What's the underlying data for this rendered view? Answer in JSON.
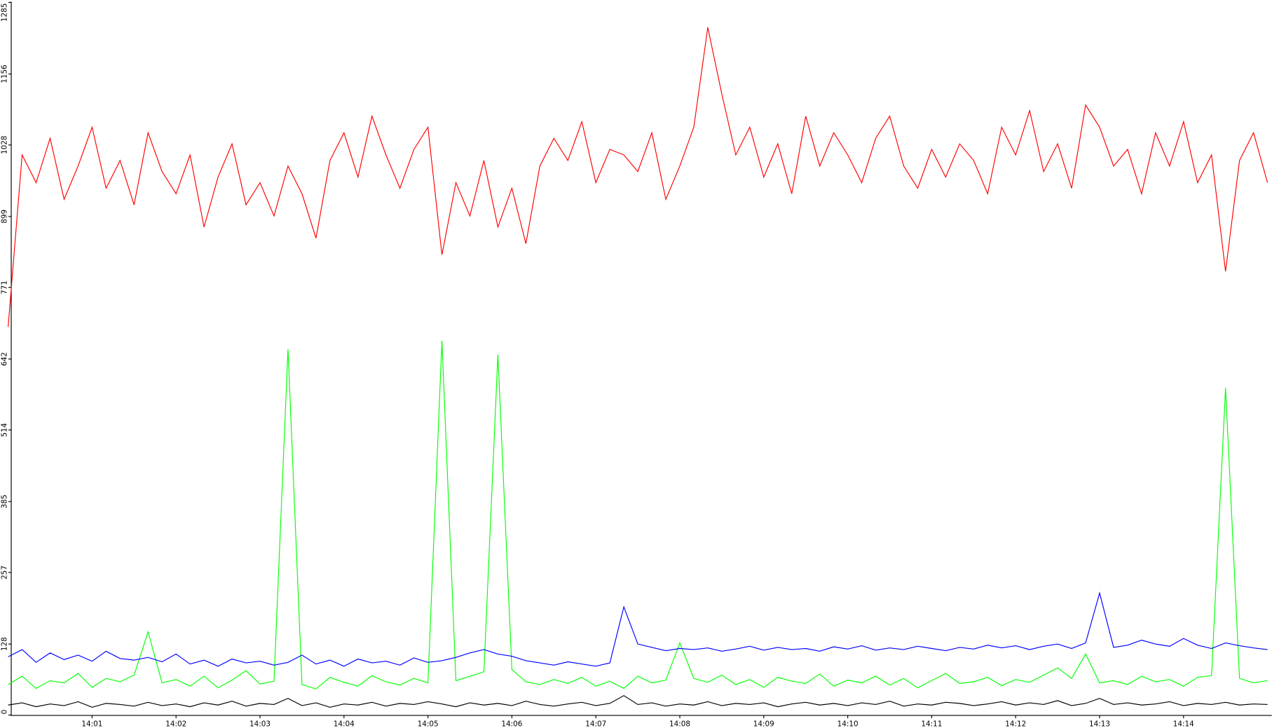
{
  "chart_data": {
    "type": "line",
    "categories": [
      null,
      null,
      null,
      null,
      null,
      null,
      null,
      null,
      null,
      null,
      null,
      null,
      null,
      null,
      null,
      null,
      null,
      null,
      null,
      null,
      null,
      null,
      null,
      null,
      null,
      null,
      null,
      null,
      null,
      null,
      null,
      null,
      null,
      null,
      null,
      null,
      null,
      null,
      null,
      null,
      null,
      null,
      null,
      null,
      null,
      null,
      null,
      null,
      null,
      null,
      null,
      null,
      null,
      null,
      null,
      null,
      null,
      null,
      null,
      null,
      null,
      null,
      null,
      null,
      null,
      null,
      null,
      null,
      null,
      null,
      null,
      null,
      null,
      null,
      null,
      null,
      null,
      null,
      null,
      null,
      null,
      null,
      null,
      null,
      null,
      null,
      null,
      null,
      null,
      null,
      null
    ],
    "xlim": [
      0.25,
      90.3
    ],
    "xticks": [
      {
        "value": 6,
        "label": "14:01"
      },
      {
        "value": 12,
        "label": "14:02"
      },
      {
        "value": 18,
        "label": "14:03"
      },
      {
        "value": 24,
        "label": "14:04"
      },
      {
        "value": 30,
        "label": "14:05"
      },
      {
        "value": 36,
        "label": "14:06"
      },
      {
        "value": 42,
        "label": "14:07"
      },
      {
        "value": 48,
        "label": "14:08"
      },
      {
        "value": 54,
        "label": "14:09"
      },
      {
        "value": 60,
        "label": "14:10"
      },
      {
        "value": 66,
        "label": "14:11"
      },
      {
        "value": 72,
        "label": "14:12"
      },
      {
        "value": 78,
        "label": "14:13"
      },
      {
        "value": 84,
        "label": "14:14"
      }
    ],
    "ylim": [
      0,
      1285
    ],
    "yticks": [
      0,
      128,
      257,
      385,
      514,
      642,
      771,
      899,
      1028,
      1156,
      1285
    ],
    "series": [
      {
        "color": "#ff0000",
        "values": [
          700,
          1010,
          960,
          1040,
          930,
          990,
          1060,
          950,
          1000,
          920,
          1050,
          980,
          940,
          1010,
          880,
          970,
          1030,
          920,
          960,
          900,
          990,
          940,
          860,
          1000,
          1050,
          970,
          1080,
          1010,
          950,
          1020,
          1060,
          830,
          960,
          900,
          1000,
          880,
          950,
          850,
          990,
          1040,
          1000,
          1070,
          960,
          1020,
          1010,
          980,
          1050,
          930,
          990,
          1060,
          1240,
          1120,
          1010,
          1060,
          970,
          1030,
          940,
          1080,
          990,
          1050,
          1010,
          960,
          1040,
          1080,
          990,
          950,
          1020,
          970,
          1030,
          1000,
          940,
          1060,
          1010,
          1090,
          980,
          1030,
          950,
          1100,
          1060,
          990,
          1020,
          940,
          1050,
          990,
          1070,
          960,
          1010,
          800,
          1000,
          1050,
          960
        ]
      },
      {
        "color": "#00ff00",
        "values": [
          55,
          70,
          48,
          62,
          58,
          75,
          50,
          66,
          60,
          72,
          150,
          58,
          64,
          52,
          70,
          49,
          63,
          80,
          56,
          61,
          660,
          55,
          47,
          68,
          59,
          52,
          71,
          60,
          54,
          66,
          58,
          675,
          62,
          70,
          78,
          650,
          82,
          60,
          55,
          64,
          57,
          68,
          52,
          61,
          48,
          70,
          58,
          63,
          130,
          66,
          59,
          72,
          55,
          64,
          50,
          68,
          61,
          57,
          74,
          52,
          63,
          58,
          70,
          54,
          66,
          49,
          62,
          75,
          57,
          60,
          68,
          53,
          64,
          59,
          72,
          85,
          66,
          110,
          58,
          62,
          55,
          70,
          60,
          64,
          52,
          68,
          71,
          590,
          66,
          58,
          62
        ]
      },
      {
        "color": "#0000ff",
        "values": [
          105,
          118,
          95,
          112,
          100,
          108,
          97,
          115,
          102,
          99,
          104,
          96,
          110,
          92,
          99,
          88,
          101,
          94,
          97,
          90,
          95,
          108,
          92,
          99,
          88,
          101,
          94,
          97,
          90,
          103,
          95,
          98,
          104,
          112,
          118,
          110,
          106,
          98,
          94,
          90,
          96,
          92,
          88,
          94,
          195,
          128,
          122,
          116,
          120,
          118,
          121,
          115,
          119,
          124,
          117,
          122,
          118,
          120,
          115,
          123,
          119,
          125,
          117,
          121,
          118,
          124,
          120,
          116,
          122,
          119,
          126,
          121,
          125,
          118,
          124,
          128,
          120,
          130,
          220,
          122,
          126,
          135,
          128,
          124,
          138,
          126,
          120,
          130,
          125,
          121,
          118
        ]
      },
      {
        "color": "#000000",
        "values": [
          18,
          22,
          15,
          20,
          17,
          24,
          14,
          21,
          19,
          16,
          23,
          17,
          20,
          15,
          22,
          18,
          25,
          16,
          21,
          19,
          30,
          17,
          22,
          14,
          20,
          18,
          23,
          16,
          21,
          19,
          24,
          20,
          15,
          22,
          18,
          21,
          17,
          25,
          19,
          16,
          20,
          23,
          17,
          21,
          35,
          19,
          22,
          16,
          20,
          18,
          24,
          17,
          21,
          19,
          22,
          15,
          20,
          23,
          18,
          21,
          17,
          22,
          19,
          25,
          16,
          20,
          18,
          23,
          21,
          17,
          20,
          24,
          18,
          22,
          19,
          26,
          17,
          21,
          30,
          19,
          22,
          18,
          20,
          24,
          17,
          21,
          19,
          23,
          18,
          20,
          19
        ]
      }
    ]
  }
}
